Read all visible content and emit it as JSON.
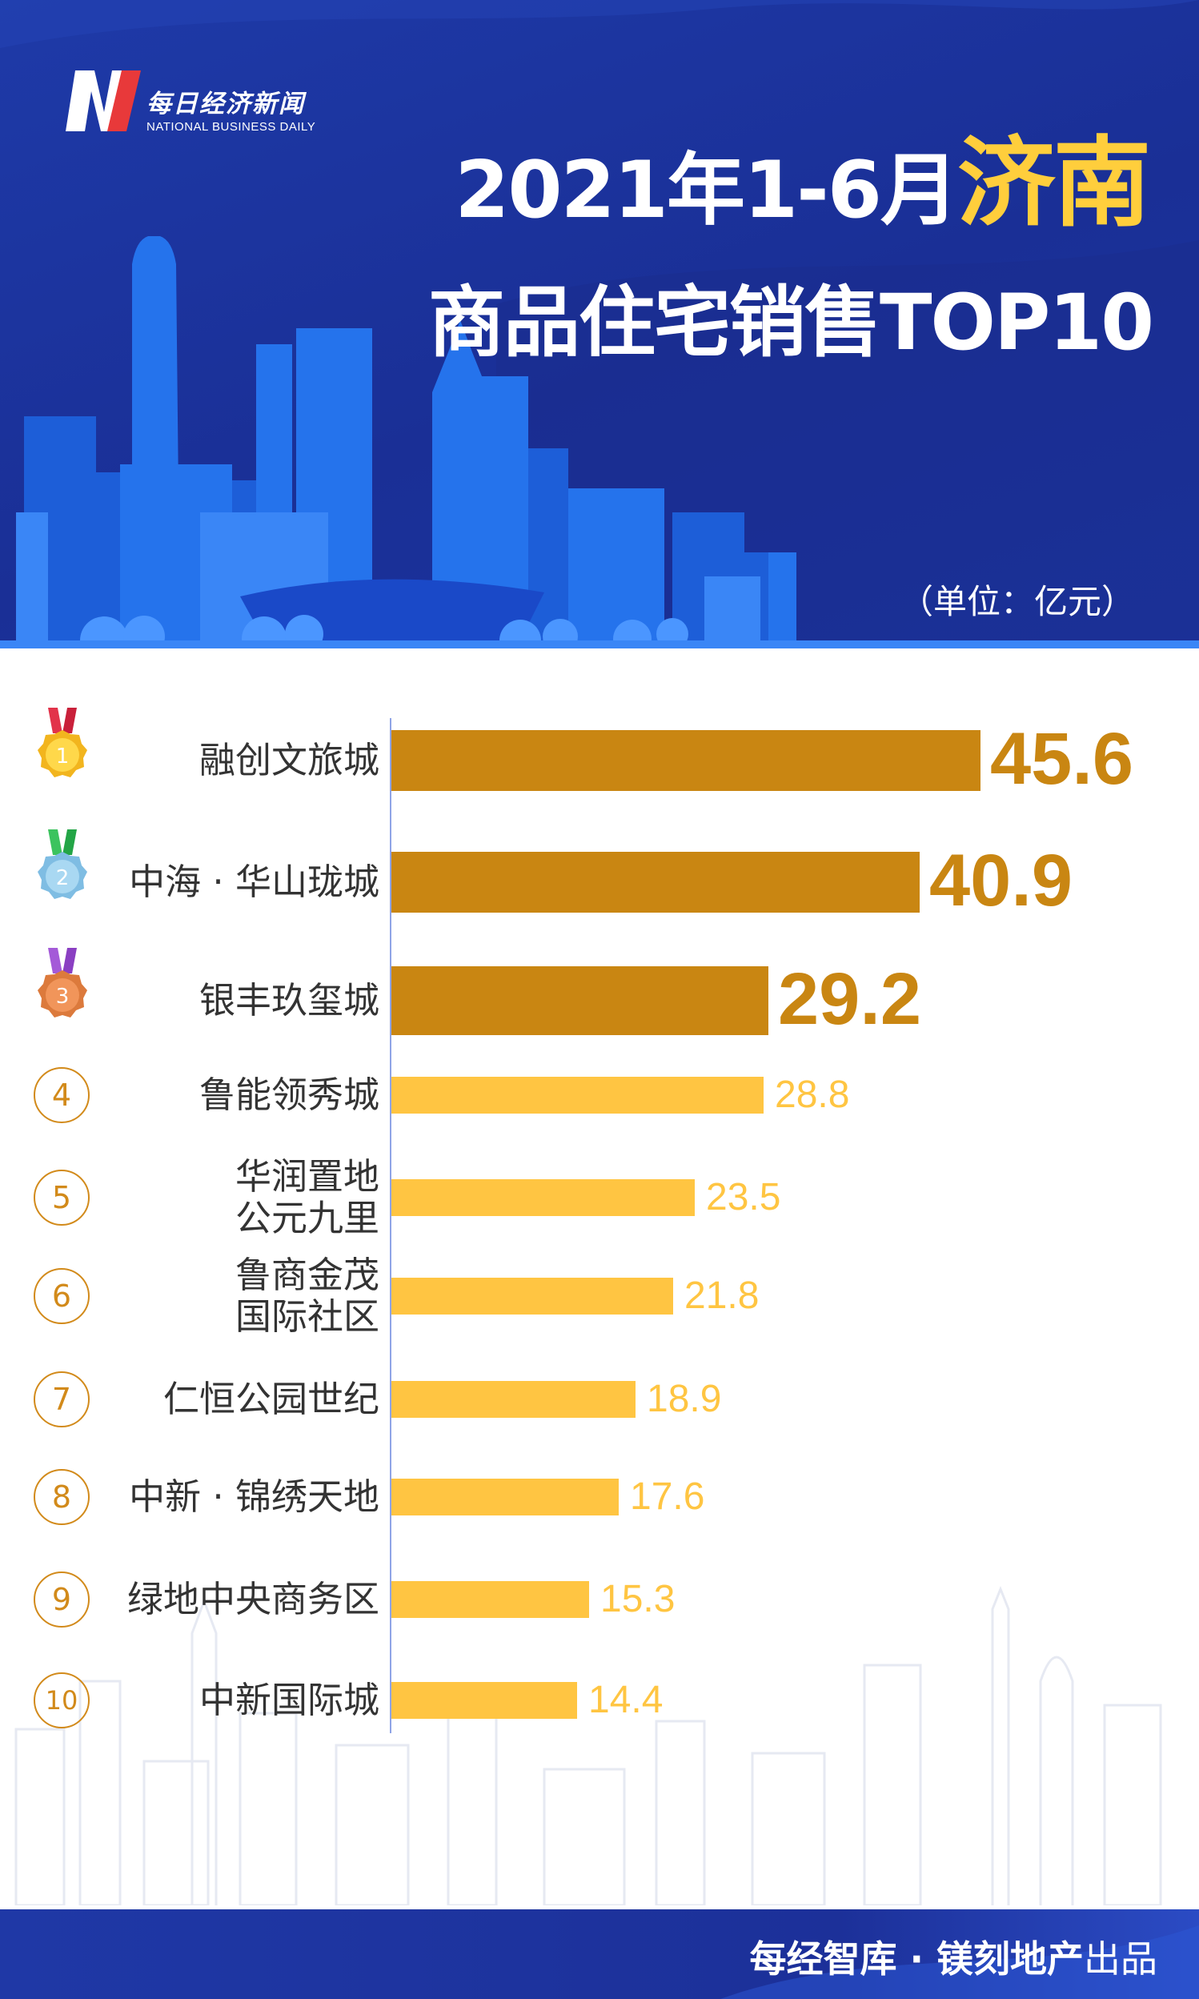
{
  "brand": {
    "name_cn": "每日经济新闻",
    "name_en": "NATIONAL BUSINESS DAILY"
  },
  "title": {
    "line1_prefix": "2021年1-6月",
    "city": "济南",
    "line2": "商品住宅销售TOP10"
  },
  "unit": "（单位：亿元）",
  "footer": {
    "producer": "每经智库 · 镁刻地产",
    "suffix": "出品"
  },
  "colors": {
    "top3_bar": "#c98612",
    "other_bar": "#ffc542",
    "header_bg": "#1a2f96",
    "title_city": "#ffce3c"
  },
  "chart_data": {
    "type": "bar",
    "orientation": "horizontal",
    "unit": "亿元",
    "categories": [
      "融创文旅城",
      "中海 · 华山珑城",
      "银丰玖玺城",
      "鲁能领秀城",
      "华润置地\n公元九里",
      "鲁商金茂\n国际社区",
      "仁恒公园世纪",
      "中新 · 锦绣天地",
      "绿地中央商务区",
      "中新国际城"
    ],
    "ranks": [
      "1",
      "2",
      "3",
      "4",
      "5",
      "6",
      "7",
      "8",
      "9",
      "10"
    ],
    "values": [
      45.6,
      40.9,
      29.2,
      28.8,
      23.5,
      21.8,
      18.9,
      17.6,
      15.3,
      14.4
    ],
    "value_labels": [
      "45.6",
      "40.9",
      "29.2",
      "28.8",
      "23.5",
      "21.8",
      "18.9",
      "17.6",
      "15.3",
      "14.4"
    ],
    "medals": [
      "gold",
      "silver",
      "bronze"
    ],
    "xlim": [
      0,
      45.6
    ]
  }
}
